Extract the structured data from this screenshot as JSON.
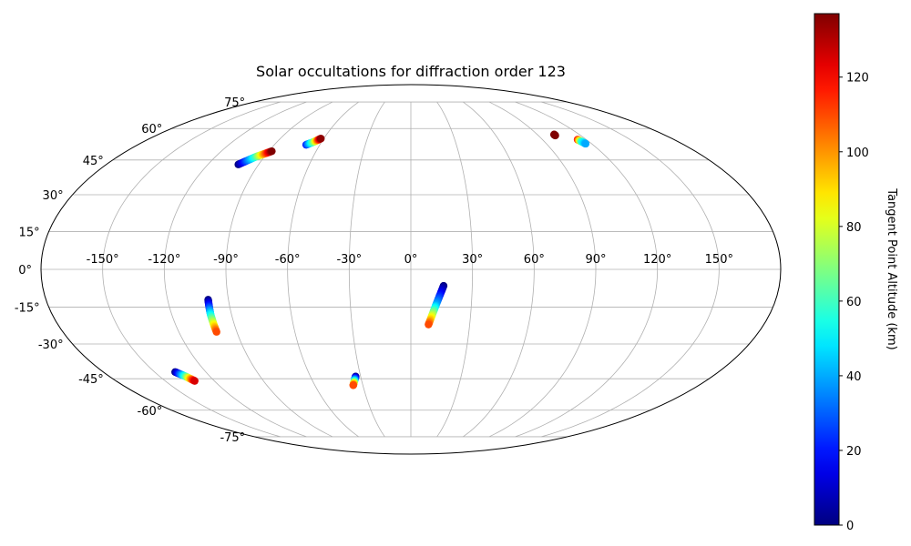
{
  "chart_data": {
    "type": "scatter",
    "projection": "mollweide",
    "title": "Solar occultations for diffraction order 123",
    "lon_ticks": [
      "-150°",
      "-120°",
      "-90°",
      "-60°",
      "-30°",
      "0°",
      "30°",
      "60°",
      "90°",
      "120°",
      "150°"
    ],
    "lat_ticks": [
      "-75°",
      "-60°",
      "-45°",
      "-30°",
      "-15°",
      "0°",
      "15°",
      "30°",
      "45°",
      "60°",
      "75°"
    ],
    "grid": true,
    "colorbar": {
      "label": "Tangent Point Altitude (km)",
      "colormap": "jet",
      "range": [
        0,
        137
      ],
      "ticks": [
        "0",
        "20",
        "40",
        "60",
        "80",
        "100",
        "120"
      ]
    },
    "series": [
      {
        "points": [
          {
            "lon": -102,
            "lat": 43,
            "alt": 0
          },
          {
            "lon": -95,
            "lat": 46.5,
            "alt": 60
          },
          {
            "lon": -88,
            "lat": 49,
            "alt": 137
          }
        ]
      },
      {
        "points": [
          {
            "lon": -69,
            "lat": 52,
            "alt": 20
          },
          {
            "lon": -65,
            "lat": 53.5,
            "alt": 70
          },
          {
            "lon": -62,
            "lat": 55,
            "alt": 135
          }
        ]
      },
      {
        "points": [
          {
            "lon": 102,
            "lat": 57,
            "alt": 137
          },
          {
            "lon": 102,
            "lat": 56.5,
            "alt": 137
          }
        ]
      },
      {
        "points": [
          {
            "lon": 114,
            "lat": 54.5,
            "alt": 120
          },
          {
            "lon": 115,
            "lat": 53.5,
            "alt": 60
          },
          {
            "lon": 116,
            "lat": 52.5,
            "alt": 40
          }
        ]
      },
      {
        "points": [
          {
            "lon": -100,
            "lat": -12,
            "alt": 0
          },
          {
            "lon": -100.5,
            "lat": -18,
            "alt": 50
          },
          {
            "lon": -100.5,
            "lat": -25,
            "alt": 110
          }
        ]
      },
      {
        "points": [
          {
            "lon": 16,
            "lat": -6.5,
            "alt": 0
          },
          {
            "lon": 12.5,
            "lat": -14,
            "alt": 40
          },
          {
            "lon": 9,
            "lat": -22,
            "alt": 110
          }
        ]
      },
      {
        "points": [
          {
            "lon": -138,
            "lat": -42,
            "alt": 0
          },
          {
            "lon": -134.5,
            "lat": -44,
            "alt": 60
          },
          {
            "lon": -132,
            "lat": -46,
            "alt": 125
          }
        ]
      },
      {
        "points": [
          {
            "lon": -33,
            "lat": -44,
            "alt": 0
          },
          {
            "lon": -34.5,
            "lat": -46,
            "alt": 50
          },
          {
            "lon": -36,
            "lat": -48,
            "alt": 110
          }
        ]
      }
    ]
  }
}
